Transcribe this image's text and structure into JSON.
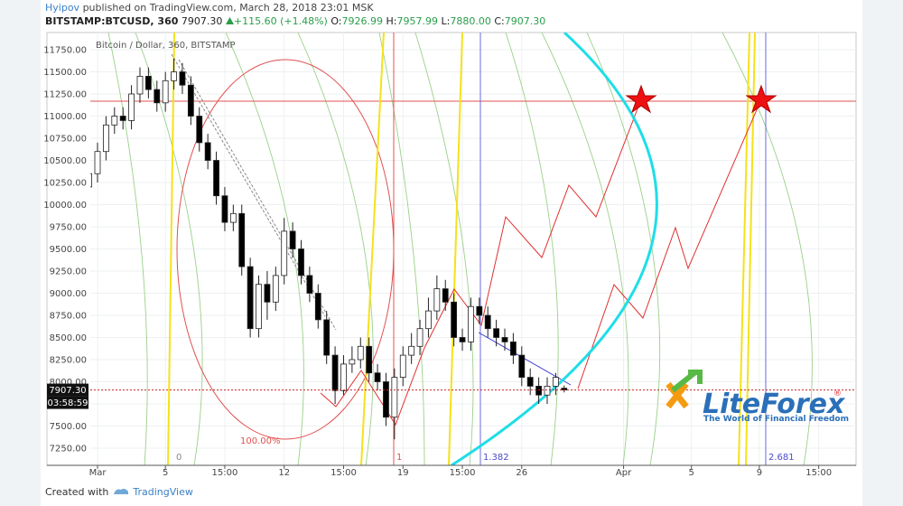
{
  "header": {
    "author": "Hyipov",
    "published": "published on TradingView.com, March 28, 2018 23:01 MSK",
    "symbol": "BITSTAMP:BTCUSD, 360",
    "last": "7907.30",
    "change": "+115.60 (+1.48%)",
    "ohlc": [
      {
        "label": "O:",
        "value": "7926.99"
      },
      {
        "label": "H:",
        "value": "7957.99"
      },
      {
        "label": "L:",
        "value": "7880.00"
      },
      {
        "label": "C:",
        "value": "7907.30"
      }
    ]
  },
  "chart_data": {
    "type": "candlestick",
    "title": "Bitcoin / Dollar, 360, BITSTAMP",
    "candles": {
      "x": [
        -0.5,
        0,
        0.5,
        1,
        1.5,
        2,
        2.5,
        3,
        3.5,
        4,
        4.5,
        5,
        5.5,
        6,
        6.5,
        7,
        7.5,
        8,
        8.5,
        9,
        9.5,
        10,
        10.5,
        11,
        11.5,
        12,
        12.5,
        13,
        13.5,
        14,
        14.5,
        15,
        15.5,
        16,
        16.5,
        17,
        17.5,
        18,
        18.5,
        19,
        19.5,
        20,
        20.5,
        21,
        21.5,
        22,
        22.5,
        23,
        23.5,
        24,
        24.5,
        25,
        25.5,
        26,
        26.5,
        27,
        27.5
      ],
      "open": [
        10200,
        10350,
        10600,
        10900,
        11000,
        10950,
        11250,
        11450,
        11300,
        11150,
        11400,
        11500,
        11350,
        11000,
        10700,
        10500,
        10100,
        9800,
        9900,
        9300,
        8600,
        9100,
        8900,
        9200,
        9700,
        9500,
        9200,
        9000,
        8700,
        8300,
        7900,
        8200,
        8250,
        8400,
        8100,
        8000,
        7600,
        8050,
        8300,
        8400,
        8600,
        8800,
        9050,
        8900,
        8500,
        8450,
        8850,
        8750,
        8600,
        8500,
        8450,
        8300,
        8050,
        7950,
        7850,
        7950,
        7926.99
      ],
      "high": [
        10450,
        10700,
        11000,
        11100,
        11100,
        11350,
        11550,
        11550,
        11400,
        11500,
        11650,
        11600,
        11450,
        11100,
        10800,
        10600,
        10200,
        10000,
        10000,
        9400,
        9200,
        9250,
        9300,
        9850,
        9800,
        9600,
        9300,
        9100,
        8800,
        8400,
        8300,
        8400,
        8500,
        8500,
        8200,
        8100,
        8150,
        8400,
        8550,
        8700,
        8950,
        9200,
        9150,
        9000,
        8600,
        8950,
        8950,
        8850,
        8700,
        8600,
        8550,
        8400,
        8150,
        8050,
        8050,
        8100,
        7957.99
      ],
      "low": [
        10100,
        10250,
        10500,
        10800,
        10850,
        10850,
        11150,
        11200,
        11050,
        11050,
        11300,
        11250,
        10900,
        10600,
        10400,
        10000,
        9700,
        9700,
        9200,
        8500,
        8500,
        8700,
        8800,
        9100,
        9400,
        9100,
        8900,
        8600,
        8200,
        7750,
        7850,
        8100,
        8150,
        8000,
        7900,
        7500,
        7350,
        7950,
        8200,
        8300,
        8500,
        8700,
        8800,
        8400,
        8350,
        8350,
        8650,
        8500,
        8400,
        8350,
        8200,
        7950,
        7850,
        7750,
        7750,
        7850,
        7880
      ],
      "close": [
        10350,
        10600,
        10900,
        11000,
        10950,
        11250,
        11450,
        11300,
        11150,
        11400,
        11500,
        11350,
        11000,
        10700,
        10500,
        10100,
        9800,
        9900,
        9300,
        8600,
        9100,
        8900,
        9200,
        9700,
        9500,
        9200,
        9000,
        8700,
        8300,
        7900,
        8200,
        8250,
        8400,
        8100,
        8000,
        7600,
        8050,
        8300,
        8400,
        8600,
        8800,
        9050,
        8900,
        8500,
        8450,
        8850,
        8750,
        8600,
        8500,
        8450,
        8300,
        8050,
        7950,
        7850,
        7950,
        8050,
        7907.3
      ]
    },
    "up_color": "#ffffff",
    "down_color": "#000000",
    "price_tag": "7907.30",
    "countdown": "03:58:59",
    "xlim": [
      -2.98,
      44.7
    ],
    "xticks": [
      {
        "value": 0,
        "label": "Mar"
      },
      {
        "value": 4,
        "label": "5"
      },
      {
        "value": 7.5,
        "label": "15:00"
      },
      {
        "value": 11,
        "label": "12"
      },
      {
        "value": 14.5,
        "label": "15:00"
      },
      {
        "value": 18,
        "label": "19"
      },
      {
        "value": 21.5,
        "label": "15:00"
      },
      {
        "value": 25,
        "label": "26"
      },
      {
        "value": 31,
        "label": "Apr"
      },
      {
        "value": 35,
        "label": "5"
      },
      {
        "value": 39,
        "label": "9"
      },
      {
        "value": 42.5,
        "label": "15:00"
      }
    ],
    "ylim": [
      7056,
      11944
    ],
    "yticks": [
      {
        "value": 7250,
        "label": "7250.00"
      },
      {
        "value": 7500,
        "label": "7500.00"
      },
      {
        "value": 7750,
        "label": "7750.00"
      },
      {
        "value": 8000,
        "label": "8000.00"
      },
      {
        "value": 8250,
        "label": "8250.00"
      },
      {
        "value": 8500,
        "label": "8500.00"
      },
      {
        "value": 8750,
        "label": "8750.00"
      },
      {
        "value": 9000,
        "label": "9000.00"
      },
      {
        "value": 9250,
        "label": "9250.00"
      },
      {
        "value": 9500,
        "label": "9500.00"
      },
      {
        "value": 9750,
        "label": "9750.00"
      },
      {
        "value": 10000,
        "label": "10000.00"
      },
      {
        "value": 10250,
        "label": "10250.00"
      },
      {
        "value": 10500,
        "label": "10500.00"
      },
      {
        "value": 10750,
        "label": "10750.00"
      },
      {
        "value": 11000,
        "label": "11000.00"
      },
      {
        "value": 11250,
        "label": "11250.00"
      },
      {
        "value": 11500,
        "label": "11500.00"
      },
      {
        "value": 11750,
        "label": "11750.00"
      }
    ],
    "grid": true,
    "annotations": {
      "fib_percent": "100.00%",
      "fib_zero": "0",
      "fib_one": "1",
      "fib_1382": "1.382",
      "fib_2681": "2.681"
    }
  },
  "logo": {
    "brand": "LiteForex",
    "registered": "®",
    "tagline": "The World of Financial Freedom"
  },
  "footer": {
    "created": "Created with",
    "brand": "TradingView"
  }
}
